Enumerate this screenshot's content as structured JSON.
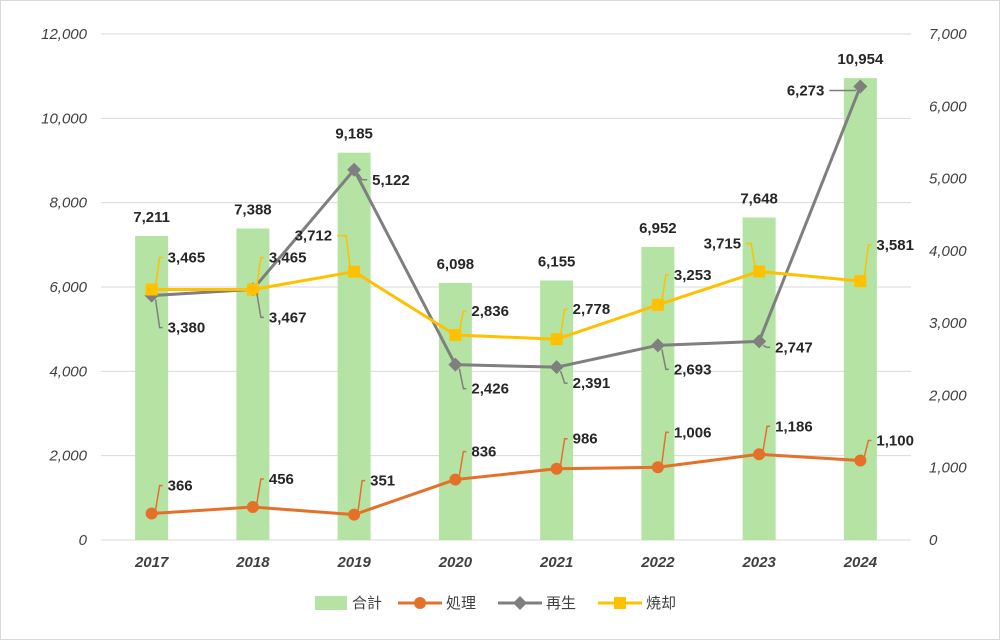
{
  "chart_data": {
    "type": "bar+line",
    "categories": [
      "2017",
      "2018",
      "2019",
      "2020",
      "2021",
      "2022",
      "2023",
      "2024"
    ],
    "bar_series": {
      "name": "合計",
      "axis": "left",
      "color": "#b5e3a4",
      "values": [
        7211,
        7388,
        9185,
        6098,
        6155,
        6952,
        7648,
        10954
      ],
      "labels": [
        "7,211",
        "7,388",
        "9,185",
        "6,098",
        "6,155",
        "6,952",
        "7,648",
        "10,954"
      ]
    },
    "line_series": [
      {
        "name": "処理",
        "axis": "right",
        "color": "#e5702a",
        "marker": "circle",
        "values": [
          366,
          456,
          351,
          836,
          986,
          1006,
          1186,
          1100
        ],
        "labels": [
          "366",
          "456",
          "351",
          "836",
          "986",
          "1,006",
          "1,186",
          "1,100"
        ]
      },
      {
        "name": "再生",
        "axis": "right",
        "color": "#7f7f7f",
        "marker": "diamond",
        "values": [
          3380,
          3467,
          5122,
          2426,
          2391,
          2693,
          2747,
          6273
        ],
        "labels": [
          "3,380",
          "3,467",
          "5,122",
          "2,426",
          "2,391",
          "2,693",
          "2,747",
          "6,273"
        ]
      },
      {
        "name": "焼却",
        "axis": "right",
        "color": "#ffc000",
        "marker": "square",
        "values": [
          3465,
          3465,
          3712,
          2836,
          2778,
          3253,
          3715,
          3581
        ],
        "labels": [
          "3,465",
          "3,465",
          "3,712",
          "2,836",
          "2,778",
          "3,253",
          "3,715",
          "3,581"
        ]
      }
    ],
    "left_axis": {
      "ylim": [
        0,
        12000
      ],
      "ticks": [
        "0",
        "2,000",
        "4,000",
        "6,000",
        "8,000",
        "10,000",
        "12,000"
      ]
    },
    "right_axis": {
      "ylim": [
        0,
        7000
      ],
      "ticks": [
        "0",
        "1,000",
        "2,000",
        "3,000",
        "4,000",
        "5,000",
        "6,000",
        "7,000"
      ]
    },
    "legend": {
      "position": "bottom",
      "items": [
        {
          "label": "合計",
          "color": "#b5e3a4",
          "kind": "bar"
        },
        {
          "label": "処理",
          "color": "#e5702a",
          "kind": "circle"
        },
        {
          "label": "再生",
          "color": "#7f7f7f",
          "kind": "diamond"
        },
        {
          "label": "焼却",
          "color": "#ffc000",
          "kind": "square"
        }
      ]
    },
    "grid": true
  }
}
